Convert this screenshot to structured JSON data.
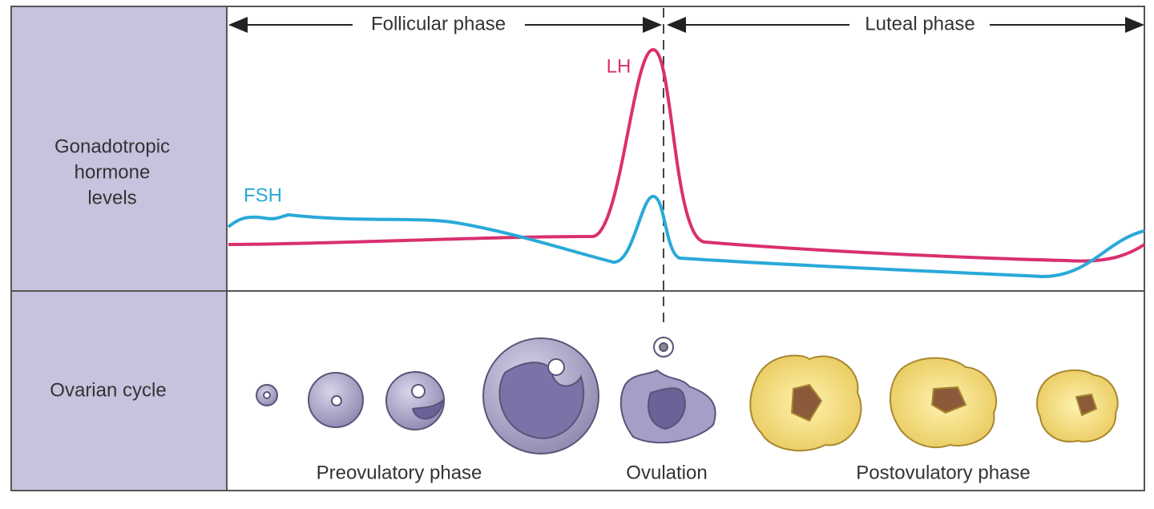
{
  "phases": {
    "follicular": "Follicular phase",
    "luteal": "Luteal phase"
  },
  "hormones": {
    "lh": "LH",
    "fsh": "FSH"
  },
  "rows": {
    "hormone_label": [
      "Gonadotropic",
      "hormone",
      "levels"
    ],
    "ovarian_label": "Ovarian cycle"
  },
  "stages": {
    "preovulatory": "Preovulatory phase",
    "ovulation": "Ovulation",
    "postovulatory": "Postovulatory phase"
  }
}
